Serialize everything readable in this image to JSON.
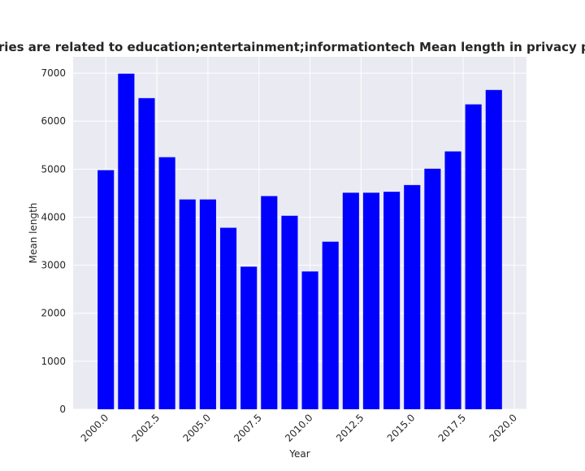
{
  "chart_data": {
    "type": "bar",
    "title": "ategories are related to education;entertainment;informationtech Mean length in privacy policie",
    "xlabel": "Year",
    "ylabel": "Mean length",
    "x": [
      2000,
      2001,
      2002,
      2003,
      2004,
      2005,
      2006,
      2007,
      2008,
      2009,
      2010,
      2011,
      2012,
      2013,
      2014,
      2015,
      2016,
      2017,
      2018,
      2019
    ],
    "values": [
      4980,
      6990,
      6480,
      5250,
      4370,
      4370,
      3780,
      2970,
      4440,
      4030,
      2870,
      3490,
      4510,
      4510,
      4530,
      4670,
      5010,
      5370,
      6350,
      6650
    ],
    "xlim": [
      1998.4,
      2020.6
    ],
    "ylim": [
      0,
      7340
    ],
    "x_ticks": [
      "2000.0",
      "2002.5",
      "2005.0",
      "2007.5",
      "2010.0",
      "2012.5",
      "2015.0",
      "2017.5",
      "2020.0"
    ],
    "x_tick_values": [
      2000,
      2002.5,
      2005,
      2007.5,
      2010,
      2012.5,
      2015,
      2017.5,
      2020
    ],
    "y_ticks": [
      "0",
      "1000",
      "2000",
      "3000",
      "4000",
      "5000",
      "6000",
      "7000"
    ],
    "y_tick_values": [
      0,
      1000,
      2000,
      3000,
      4000,
      5000,
      6000,
      7000
    ],
    "bar_color": "#0000ff",
    "background_color": "#eaeaf2",
    "grid": true,
    "legend": "none"
  }
}
